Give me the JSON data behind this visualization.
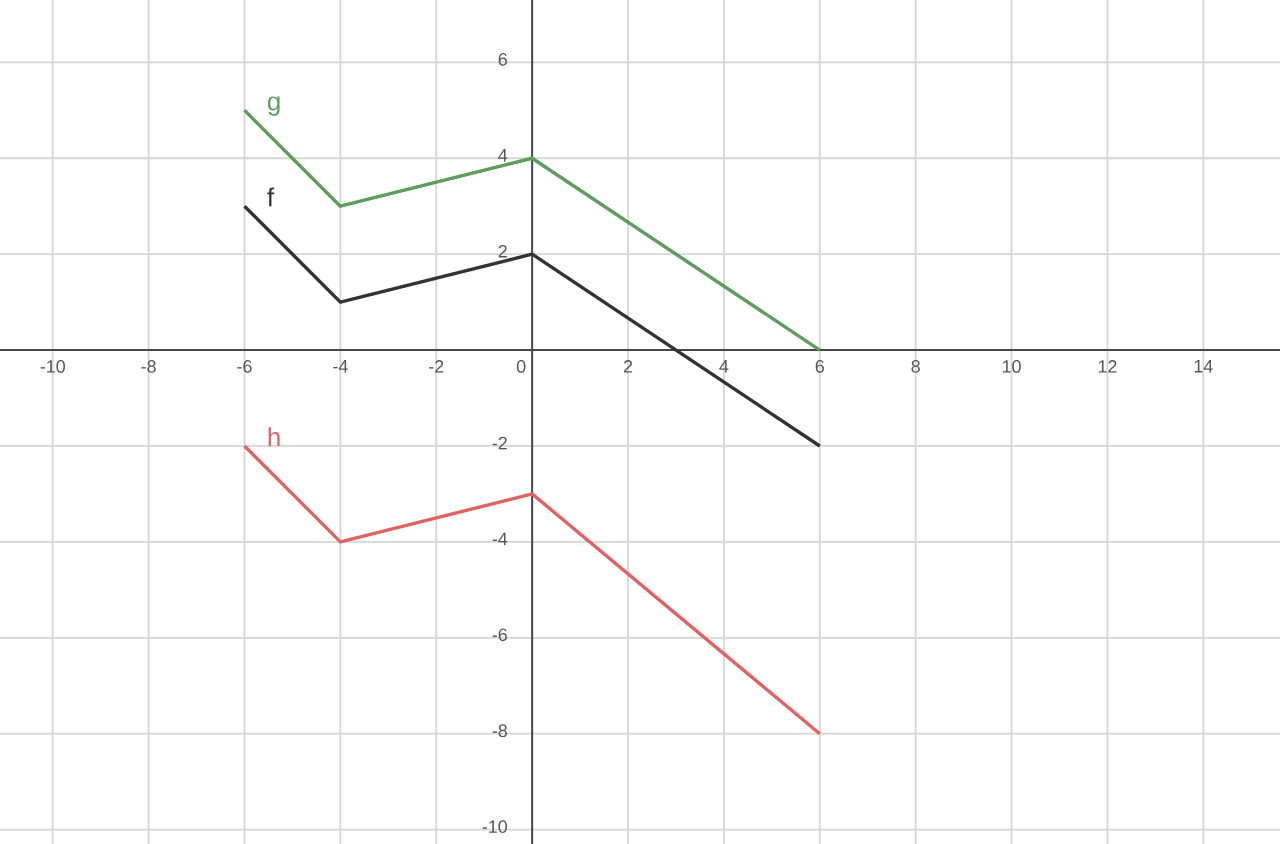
{
  "chart_data": {
    "type": "line",
    "x": [
      -6,
      -4,
      0,
      6
    ],
    "series": [
      {
        "name": "g",
        "color": "#5d9e5d",
        "values": [
          5,
          3,
          4,
          0
        ]
      },
      {
        "name": "f",
        "color": "#333333",
        "values": [
          3,
          1,
          2,
          -2
        ]
      },
      {
        "name": "h",
        "color": "#e06363",
        "values": [
          -2,
          -4,
          -3,
          -8
        ]
      }
    ],
    "xlim": [
      -11.1,
      15.6
    ],
    "ylim": [
      -10.3,
      7.3
    ],
    "xticks": [
      -10,
      -8,
      -6,
      -4,
      -2,
      0,
      2,
      4,
      6,
      8,
      10,
      12,
      14
    ],
    "yticks": [
      -10,
      -8,
      -6,
      -4,
      -2,
      2,
      4,
      6
    ],
    "grid": true,
    "line_style": "solid"
  }
}
